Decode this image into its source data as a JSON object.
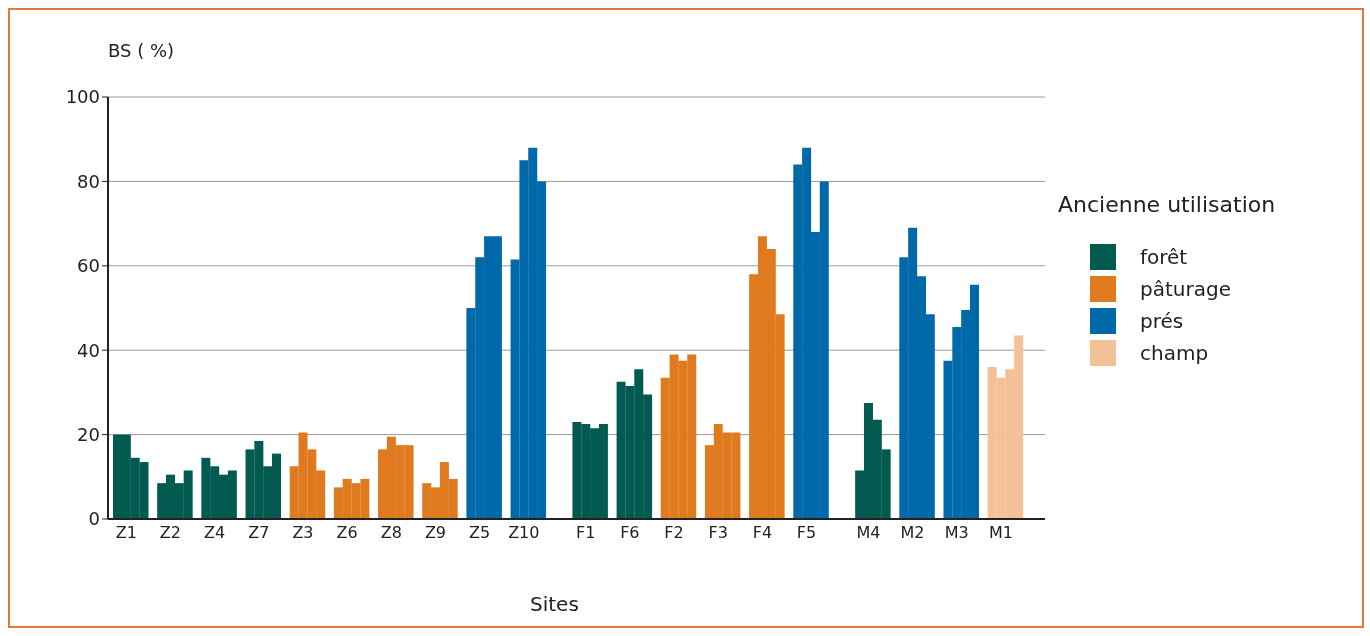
{
  "chart_data": {
    "type": "bar",
    "stacked": true,
    "ylabel": "BS ( %)",
    "xlabel": "Sites",
    "legend_title": "Ancienne utilisation",
    "legend": "right",
    "grid": "y",
    "ylim": [
      0,
      100
    ],
    "yticks": [
      0,
      20,
      40,
      60,
      80,
      100
    ],
    "categories": [
      null,
      "Z1",
      null,
      null,
      null,
      null,
      "Z2",
      null,
      null,
      null,
      null,
      "Z4",
      null,
      null,
      null,
      null,
      "Z7",
      null,
      null,
      null,
      null,
      "Z3",
      null,
      null,
      null,
      null,
      "Z6",
      null,
      null,
      null,
      null,
      "Z8",
      null,
      null,
      null,
      null,
      "Z9",
      null,
      null,
      null,
      null,
      "Z5",
      null,
      null,
      null,
      null,
      "Z10",
      null,
      null,
      null,
      null,
      null,
      null,
      "F1",
      null,
      null,
      null,
      null,
      "F6",
      null,
      null,
      null,
      null,
      "F2",
      null,
      null,
      null,
      null,
      "F3",
      null,
      null,
      null,
      null,
      "F4",
      null,
      null,
      null,
      null,
      "F5",
      null,
      null,
      null,
      null,
      null,
      null,
      "M4",
      null,
      null,
      null,
      null,
      "M2",
      null,
      null,
      null,
      null,
      "M3",
      null,
      null,
      null,
      null,
      "M1",
      null,
      null
    ],
    "series": [
      {
        "name": "forêt",
        "color": "#035a50",
        "values": [
          20,
          20,
          14.5,
          13.5,
          null,
          8.5,
          10.5,
          8.5,
          11.5,
          null,
          14.5,
          12.5,
          10.5,
          11.5,
          null,
          16.5,
          18.5,
          12.5,
          15.5,
          null,
          null,
          null,
          null,
          null,
          null,
          null,
          null,
          null,
          null,
          null,
          null,
          null,
          null,
          null,
          null,
          null,
          null,
          null,
          null,
          null,
          null,
          null,
          null,
          null,
          null,
          null,
          null,
          null,
          null,
          null,
          null,
          null,
          23,
          22.5,
          21.5,
          22.5,
          null,
          32.5,
          31.5,
          35.5,
          29.5,
          null,
          null,
          null,
          null,
          null,
          null,
          null,
          null,
          null,
          null,
          null,
          null,
          null,
          null,
          null,
          null,
          null,
          null,
          null,
          null,
          null,
          null,
          null,
          11.5,
          27.5,
          23.5,
          16.5,
          null,
          null,
          null,
          null,
          null,
          null,
          null,
          null,
          null,
          null,
          null,
          null,
          null,
          null,
          null
        ]
      },
      {
        "name": "pâturage",
        "color": "#e07a1e",
        "values": [
          null,
          null,
          null,
          null,
          null,
          null,
          null,
          null,
          null,
          null,
          null,
          null,
          null,
          null,
          null,
          null,
          null,
          null,
          null,
          null,
          12.5,
          20.5,
          16.5,
          11.5,
          null,
          7.5,
          9.5,
          8.5,
          9.5,
          null,
          16.5,
          19.5,
          17.5,
          17.5,
          null,
          8.5,
          7.5,
          13.5,
          9.5,
          null,
          null,
          null,
          null,
          null,
          null,
          null,
          null,
          null,
          null,
          null,
          null,
          null,
          null,
          null,
          null,
          null,
          null,
          null,
          null,
          null,
          null,
          null,
          33.5,
          39,
          37.5,
          39,
          null,
          17.5,
          22.5,
          20.5,
          20.5,
          null,
          58,
          67,
          64,
          48.5,
          null,
          null,
          null,
          null,
          null,
          null,
          null,
          null,
          null,
          null,
          null,
          null,
          null,
          null,
          null,
          null,
          null,
          null,
          null,
          null,
          null,
          null,
          null,
          null,
          null,
          null,
          null
        ]
      },
      {
        "name": "prés",
        "color": "#0069aa",
        "values": [
          null,
          null,
          null,
          null,
          null,
          null,
          null,
          null,
          null,
          null,
          null,
          null,
          null,
          null,
          null,
          null,
          null,
          null,
          null,
          null,
          null,
          null,
          null,
          null,
          null,
          null,
          null,
          null,
          null,
          null,
          null,
          null,
          null,
          null,
          null,
          null,
          null,
          null,
          null,
          null,
          50,
          62,
          67,
          67,
          null,
          61.5,
          85,
          88,
          80,
          null,
          null,
          null,
          null,
          null,
          null,
          null,
          null,
          null,
          null,
          null,
          null,
          null,
          null,
          null,
          null,
          null,
          null,
          null,
          null,
          null,
          null,
          null,
          null,
          null,
          null,
          null,
          null,
          84,
          88,
          68,
          80,
          null,
          null,
          null,
          null,
          null,
          null,
          null,
          null,
          62,
          69,
          57.5,
          48.5,
          null,
          37.5,
          45.5,
          49.5,
          55.5,
          null,
          null,
          null,
          null,
          null
        ]
      },
      {
        "name": "champ",
        "color": "#f2c296",
        "values": [
          null,
          null,
          null,
          null,
          null,
          null,
          null,
          null,
          null,
          null,
          null,
          null,
          null,
          null,
          null,
          null,
          null,
          null,
          null,
          null,
          null,
          null,
          null,
          null,
          null,
          null,
          null,
          null,
          null,
          null,
          null,
          null,
          null,
          null,
          null,
          null,
          null,
          null,
          null,
          null,
          null,
          null,
          null,
          null,
          null,
          null,
          null,
          null,
          null,
          null,
          null,
          null,
          null,
          null,
          null,
          null,
          null,
          null,
          null,
          null,
          null,
          null,
          null,
          null,
          null,
          null,
          null,
          null,
          null,
          null,
          null,
          null,
          null,
          null,
          null,
          null,
          null,
          null,
          null,
          null,
          null,
          null,
          null,
          null,
          null,
          null,
          null,
          null,
          null,
          null,
          null,
          null,
          null,
          null,
          null,
          null,
          null,
          null,
          null,
          36,
          33.5,
          35.5,
          43.5
        ]
      }
    ]
  }
}
